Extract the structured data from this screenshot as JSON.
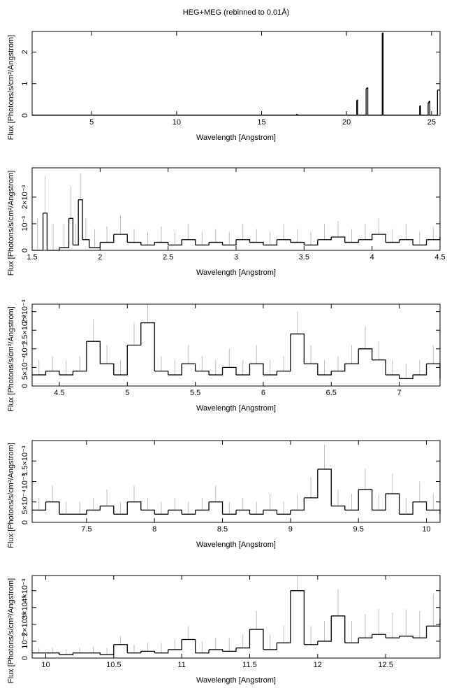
{
  "chart_data": [
    {
      "type": "line",
      "step": true,
      "title": "HEG+MEG (rebinned to 0.01Å)",
      "x_label": "Wavelength [Angstrom]",
      "y_label": "Flux [Photons/s/cm²/Angstrom]",
      "color": "#000000",
      "x": [
        1.5,
        17.05,
        17.1,
        20.6,
        20.65,
        21.15,
        21.2,
        21.25,
        22.1,
        22.15,
        24.3,
        24.35,
        24.8,
        24.85,
        24.9,
        25.35,
        25.5
      ],
      "values": [
        0.01,
        0.03,
        0.01,
        0.48,
        0.01,
        0.85,
        0.87,
        0.01,
        2.6,
        0.01,
        0.3,
        0.01,
        0.4,
        0.45,
        0.01,
        0.8,
        0.8
      ],
      "xlim": [
        1.5,
        25.5
      ],
      "xticks": [
        5,
        10,
        15,
        20,
        25
      ],
      "ylim": [
        0,
        2.65
      ],
      "yticks": [
        0,
        1,
        2
      ]
    },
    {
      "type": "line",
      "step": true,
      "x_label": "Wavelength [Angstrom]",
      "y_label": "Flux [Photons/s/cm²/Angstrom]",
      "color": "#000000",
      "error_color": "#bbbbbb",
      "x": [
        1.5,
        1.58,
        1.61,
        1.7,
        1.77,
        1.8,
        1.84,
        1.87,
        1.92,
        2.0,
        2.1,
        2.2,
        2.3,
        2.4,
        2.5,
        2.6,
        2.7,
        2.8,
        2.9,
        3.0,
        3.1,
        3.2,
        3.3,
        3.4,
        3.5,
        3.6,
        3.7,
        3.8,
        3.9,
        4.0,
        4.1,
        4.2,
        4.3,
        4.4,
        4.5
      ],
      "values": [
        0,
        0.0014,
        0,
        0.0001,
        0.0012,
        0.0002,
        0.0019,
        0.0004,
        0.0001,
        0.0003,
        0.0006,
        0.0003,
        0.0002,
        0.0003,
        0.0002,
        0.0004,
        0.0002,
        0.0003,
        0.0002,
        0.0004,
        0.0003,
        0.0002,
        0.0004,
        0.0003,
        0.0002,
        0.0004,
        0.0005,
        0.0003,
        0.0004,
        0.0006,
        0.0003,
        0.0004,
        0.0002,
        0.0004,
        0.0005
      ],
      "errors": [
        0.0012,
        0.0014,
        0.001,
        0.0009,
        0.0012,
        0.0008,
        0.001,
        0.0008,
        0.0007,
        0.0006,
        0.0007,
        0.0005,
        0.0005,
        0.0006,
        0.0005,
        0.0006,
        0.0005,
        0.0005,
        0.0005,
        0.0006,
        0.0005,
        0.0005,
        0.0006,
        0.0005,
        0.0005,
        0.0006,
        0.0006,
        0.0005,
        0.0006,
        0.0006,
        0.0005,
        0.0006,
        0.0005,
        0.0005,
        0.0006
      ],
      "xlim": [
        1.5,
        4.5
      ],
      "xticks": [
        1.5,
        2,
        2.5,
        3,
        3.5,
        4,
        4.5
      ],
      "ylim": [
        0,
        0.0031
      ],
      "yticks": [
        0,
        {
          "value": 0.001,
          "label": "10⁻³"
        },
        {
          "value": 0.002,
          "label": "2×10⁻³"
        }
      ]
    },
    {
      "type": "line",
      "step": true,
      "x_label": "Wavelength [Angstrom]",
      "y_label": "Flux [Photons/s/cm²/Angstrom]",
      "color": "#000000",
      "error_color": "#bbbbbb",
      "x": [
        4.3,
        4.4,
        4.5,
        4.6,
        4.7,
        4.8,
        4.9,
        5.0,
        5.1,
        5.2,
        5.3,
        5.4,
        5.5,
        5.6,
        5.7,
        5.8,
        5.9,
        6.0,
        6.1,
        6.2,
        6.3,
        6.4,
        6.5,
        6.6,
        6.7,
        6.8,
        6.9,
        7.0,
        7.1,
        7.2,
        7.3
      ],
      "values": [
        0.0003,
        0.0004,
        0.0003,
        0.0004,
        0.0012,
        0.0006,
        0.0003,
        0.0011,
        0.0017,
        0.0004,
        0.0003,
        0.0006,
        0.0004,
        0.0003,
        0.0005,
        0.0003,
        0.0006,
        0.0003,
        0.0004,
        0.0014,
        0.0006,
        0.0003,
        0.0004,
        0.0006,
        0.001,
        0.0007,
        0.0003,
        0.0002,
        0.0003,
        0.0006,
        0.0002
      ],
      "errors": [
        0.0004,
        0.0004,
        0.0004,
        0.0004,
        0.0006,
        0.0005,
        0.0004,
        0.0006,
        0.0007,
        0.0004,
        0.0004,
        0.0005,
        0.0004,
        0.0004,
        0.0005,
        0.0004,
        0.0005,
        0.0004,
        0.0004,
        0.0006,
        0.0005,
        0.0004,
        0.0004,
        0.0005,
        0.0006,
        0.0005,
        0.0004,
        0.0004,
        0.0004,
        0.0005,
        0.0004
      ],
      "xlim": [
        4.3,
        7.3
      ],
      "xticks": [
        4.5,
        5,
        5.5,
        6,
        6.5,
        7
      ],
      "ylim": [
        0,
        0.0022
      ],
      "yticks": [
        0,
        {
          "value": 0.0005,
          "label": "5×10⁻⁴"
        },
        {
          "value": 0.001,
          "label": "10⁻³"
        },
        {
          "value": 0.0015,
          "label": "1.5×10⁻³"
        },
        {
          "value": 0.002,
          "label": "2×10⁻³"
        }
      ]
    },
    {
      "type": "line",
      "step": true,
      "x_label": "Wavelength [Angstrom]",
      "y_label": "Flux [Photons/s/cm²/Angstrom]",
      "color": "#000000",
      "error_color": "#bbbbbb",
      "x": [
        7.1,
        7.2,
        7.3,
        7.4,
        7.5,
        7.6,
        7.7,
        7.8,
        7.9,
        8.0,
        8.1,
        8.2,
        8.3,
        8.4,
        8.5,
        8.6,
        8.7,
        8.8,
        8.9,
        9.0,
        9.1,
        9.2,
        9.3,
        9.4,
        9.5,
        9.6,
        9.7,
        9.8,
        9.9,
        10.0,
        10.1
      ],
      "values": [
        0.0003,
        0.0005,
        0.0002,
        0.0002,
        0.0003,
        0.0004,
        0.0002,
        0.0005,
        0.0003,
        0.0002,
        0.0003,
        0.0002,
        0.0003,
        0.0005,
        0.0002,
        0.0003,
        0.0002,
        0.0003,
        0.0002,
        0.0003,
        0.0006,
        0.0013,
        0.0004,
        0.0003,
        0.0008,
        0.0003,
        0.0007,
        0.0002,
        0.0005,
        0.0003,
        0.0002
      ],
      "errors": [
        0.0003,
        0.0004,
        0.0003,
        0.0003,
        0.0003,
        0.0004,
        0.0003,
        0.0004,
        0.0003,
        0.0003,
        0.0003,
        0.0003,
        0.0003,
        0.0004,
        0.0003,
        0.0003,
        0.0003,
        0.0004,
        0.0003,
        0.0004,
        0.0005,
        0.0006,
        0.0004,
        0.0004,
        0.0005,
        0.0004,
        0.0005,
        0.0004,
        0.0005,
        0.0004,
        0.0004
      ],
      "xlim": [
        7.1,
        10.1
      ],
      "xticks": [
        7.5,
        8,
        8.5,
        9,
        9.5,
        10
      ],
      "ylim": [
        0,
        0.002
      ],
      "yticks": [
        0,
        {
          "value": 0.0005,
          "label": "5×10⁻⁴"
        },
        {
          "value": 0.001,
          "label": "10⁻³"
        },
        {
          "value": 0.0015,
          "label": "1.5×10⁻³"
        }
      ]
    },
    {
      "type": "line",
      "step": true,
      "x_label": "Wavelength [Angstrom]",
      "y_label": "Flux [Photons/s/cm²/Angstrom]",
      "color": "#000000",
      "error_color": "#bbbbbb",
      "x": [
        9.9,
        10.0,
        10.1,
        10.2,
        10.3,
        10.4,
        10.5,
        10.6,
        10.7,
        10.8,
        10.9,
        11.0,
        11.1,
        11.2,
        11.3,
        11.4,
        11.5,
        11.6,
        11.7,
        11.8,
        11.9,
        12.0,
        12.1,
        12.2,
        12.3,
        12.4,
        12.5,
        12.6,
        12.7,
        12.8,
        12.9
      ],
      "values": [
        0.0003,
        0.0003,
        0.0002,
        0.0003,
        0.0003,
        0.0002,
        0.0008,
        0.0003,
        0.0004,
        0.0003,
        0.0005,
        0.0011,
        0.0003,
        0.0005,
        0.0004,
        0.0006,
        0.0017,
        0.0005,
        0.0009,
        0.004,
        0.0008,
        0.001,
        0.0025,
        0.0009,
        0.0012,
        0.0014,
        0.0012,
        0.0013,
        0.0012,
        0.0019,
        0.0023
      ],
      "errors": [
        0.0003,
        0.0003,
        0.0003,
        0.0003,
        0.0004,
        0.0004,
        0.0005,
        0.0005,
        0.0005,
        0.0006,
        0.0006,
        0.0008,
        0.0007,
        0.0007,
        0.0008,
        0.0008,
        0.0011,
        0.0009,
        0.001,
        0.0015,
        0.0011,
        0.0012,
        0.0016,
        0.0013,
        0.0014,
        0.0015,
        0.0015,
        0.0016,
        0.0016,
        0.0019,
        0.002
      ],
      "xlim": [
        9.9,
        12.9
      ],
      "xticks": [
        10,
        10.5,
        11,
        11.5,
        12,
        12.5
      ],
      "ylim": [
        0,
        0.0049
      ],
      "yticks": [
        0,
        {
          "value": 0.001,
          "label": "10⁻³"
        },
        {
          "value": 0.002,
          "label": "2×10⁻³"
        },
        {
          "value": 0.003,
          "label": "3×10⁻³"
        },
        {
          "value": 0.004,
          "label": "4×10⁻³"
        }
      ]
    }
  ]
}
